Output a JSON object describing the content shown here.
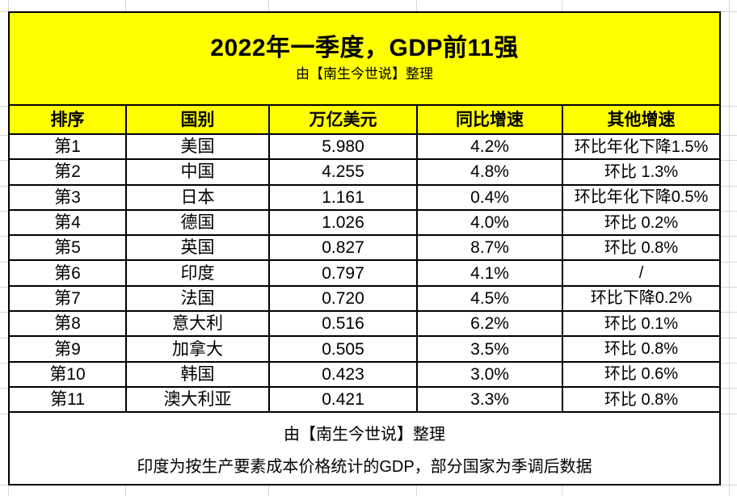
{
  "chart_data": {
    "type": "table",
    "title": "2022年一季度，GDP前11强",
    "subtitle": "由【南生今世说】整理",
    "columns": [
      "排序",
      "国别",
      "万亿美元",
      "同比增速",
      "其他增速"
    ],
    "rows": [
      [
        "第1",
        "美国",
        "5.980",
        "4.2%",
        "环比年化下降1.5%"
      ],
      [
        "第2",
        "中国",
        "4.255",
        "4.8%",
        "环比 1.3%"
      ],
      [
        "第3",
        "日本",
        "1.161",
        "0.4%",
        "环比年化下降0.5%"
      ],
      [
        "第4",
        "德国",
        "1.026",
        "4.0%",
        "环比 0.2%"
      ],
      [
        "第5",
        "英国",
        "0.827",
        "8.7%",
        "环比 0.8%"
      ],
      [
        "第6",
        "印度",
        "0.797",
        "4.1%",
        "/"
      ],
      [
        "第7",
        "法国",
        "0.720",
        "4.5%",
        "环比下降0.2%"
      ],
      [
        "第8",
        "意大利",
        "0.516",
        "6.2%",
        "环比 0.1%"
      ],
      [
        "第9",
        "加拿大",
        "0.505",
        "3.5%",
        "环比 0.8%"
      ],
      [
        "第10",
        "韩国",
        "0.423",
        "3.0%",
        "环比 0.6%"
      ],
      [
        "第11",
        "澳大利亚",
        "0.421",
        "3.3%",
        "环比 0.8%"
      ]
    ],
    "footer_line1": "由【南生今世说】整理",
    "footer_line2": "印度为按生产要素成本价格统计的GDP，部分国家为季调后数据",
    "layout_hints": "merged yellow title cell on top, yellow header row, 11 white data rows, merged white footer cell; black 2px grid borders; faint spreadsheet gridlines visible around the table"
  },
  "colors": {
    "highlight": "#FFFF00",
    "border": "#000000",
    "text": "#000000",
    "gridline": "#D6D6D6"
  }
}
